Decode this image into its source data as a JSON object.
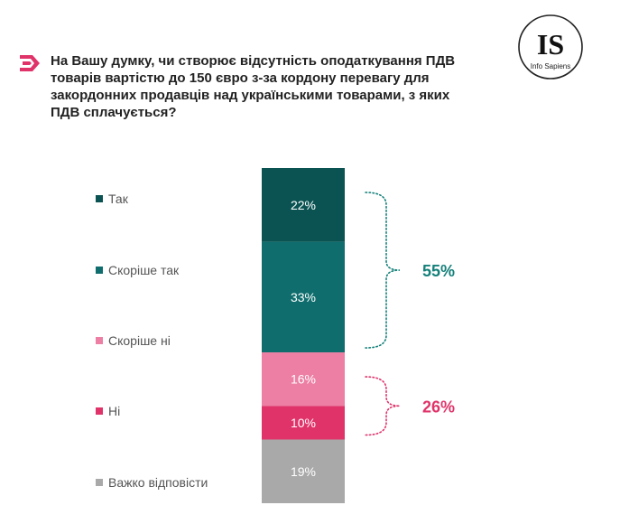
{
  "header": {
    "question": "На Вашу думку, чи створює відсутність оподаткування ПДВ товарів вартістю до 150 євро з-за кордону перевагу для закордонних продавців над українськими товарами, з яких ПДВ сплачується?",
    "icon": "arrow-right-icon",
    "icon_color": "#e0336a"
  },
  "logo": {
    "mark": "IS",
    "text": "Info Sapiens"
  },
  "chart_data": {
    "type": "bar",
    "stacked": true,
    "orientation": "vertical",
    "categories": [
      "Так",
      "Скоріше так",
      "Скоріше ні",
      "Ні",
      "Важко відповісти"
    ],
    "values": [
      22,
      33,
      16,
      10,
      19
    ],
    "labels": [
      "22%",
      "33%",
      "16%",
      "10%",
      "19%"
    ],
    "colors": [
      "#0b5353",
      "#0f6d6d",
      "#ec7fa3",
      "#e0336a",
      "#a9a9a9"
    ],
    "legend_position": "left",
    "groups": [
      {
        "label": "55%",
        "members": [
          "Так",
          "Скоріше так"
        ],
        "value": 55,
        "color": "#15807a"
      },
      {
        "label": "26%",
        "members": [
          "Скоріше ні",
          "Ні"
        ],
        "value": 26,
        "color": "#e0336a"
      }
    ],
    "title": "",
    "xlabel": "",
    "ylabel": "",
    "ylim": [
      0,
      100
    ]
  }
}
